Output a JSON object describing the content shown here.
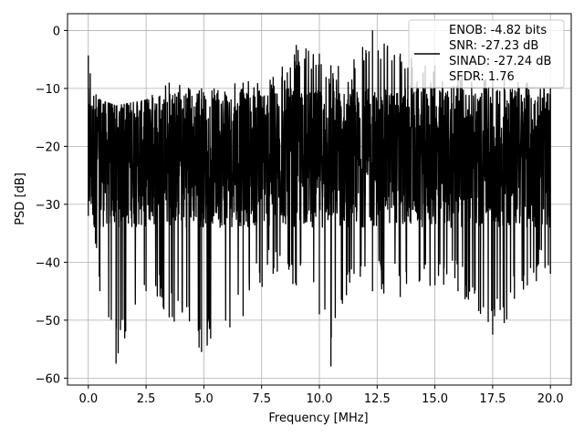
{
  "chart_data": {
    "type": "line",
    "title": "",
    "xlabel": "Frequency [MHz]",
    "ylabel": "PSD [dB]",
    "xlim": [
      -0.9,
      20.9
    ],
    "ylim": [
      -61.2,
      2.9
    ],
    "grid": true,
    "xticks": [
      0.0,
      2.5,
      5.0,
      7.5,
      10.0,
      12.5,
      15.0,
      17.5,
      20.0
    ],
    "xtick_labels": [
      "0.0",
      "2.5",
      "5.0",
      "7.5",
      "10.0",
      "12.5",
      "15.0",
      "17.5",
      "20.0"
    ],
    "yticks": [
      0,
      -10,
      -20,
      -30,
      -40,
      -50,
      -60
    ],
    "ytick_labels": [
      "0",
      "−10",
      "−20",
      "−30",
      "−40",
      "−50",
      "−60"
    ],
    "legend": {
      "placement": "top-right",
      "entries": [
        "ENOB: -4.82 bits",
        "SNR: -27.23 dB",
        "SINAD: -27.24 dB",
        "SFDR: 1.76"
      ]
    },
    "series": [
      {
        "color": "#000000",
        "x_range": [
          0.0,
          20.0
        ],
        "band_profile": [
          {
            "x": 0.0,
            "upper": -4.3,
            "lower": -32
          },
          {
            "x": 0.5,
            "upper": -12,
            "lower": -45
          },
          {
            "x": 1.2,
            "upper": -13,
            "lower": -57.5
          },
          {
            "x": 2.5,
            "upper": -12,
            "lower": -45
          },
          {
            "x": 3.5,
            "upper": -9,
            "lower": -49.5
          },
          {
            "x": 4.9,
            "upper": -10,
            "lower": -55.5
          },
          {
            "x": 6.7,
            "upper": -9,
            "lower": -49.3
          },
          {
            "x": 8.0,
            "upper": -8,
            "lower": -42
          },
          {
            "x": 9.0,
            "upper": -2.5,
            "lower": -44
          },
          {
            "x": 10.0,
            "upper": -4,
            "lower": -49
          },
          {
            "x": 10.5,
            "upper": -6,
            "lower": -58
          },
          {
            "x": 11.5,
            "upper": -5,
            "lower": -42
          },
          {
            "x": 12.3,
            "upper": 0,
            "lower": -45
          },
          {
            "x": 13.5,
            "upper": -4,
            "lower": -46
          },
          {
            "x": 15.0,
            "upper": -6,
            "lower": -44
          },
          {
            "x": 16.0,
            "upper": -8,
            "lower": -45
          },
          {
            "x": 17.5,
            "upper": -8,
            "lower": -52.5
          },
          {
            "x": 18.0,
            "upper": -8,
            "lower": -50.5
          },
          {
            "x": 19.0,
            "upper": -9,
            "lower": -44
          },
          {
            "x": 20.0,
            "upper": -10,
            "lower": -42
          }
        ],
        "typical_range": [
          -34,
          -10
        ]
      }
    ]
  }
}
